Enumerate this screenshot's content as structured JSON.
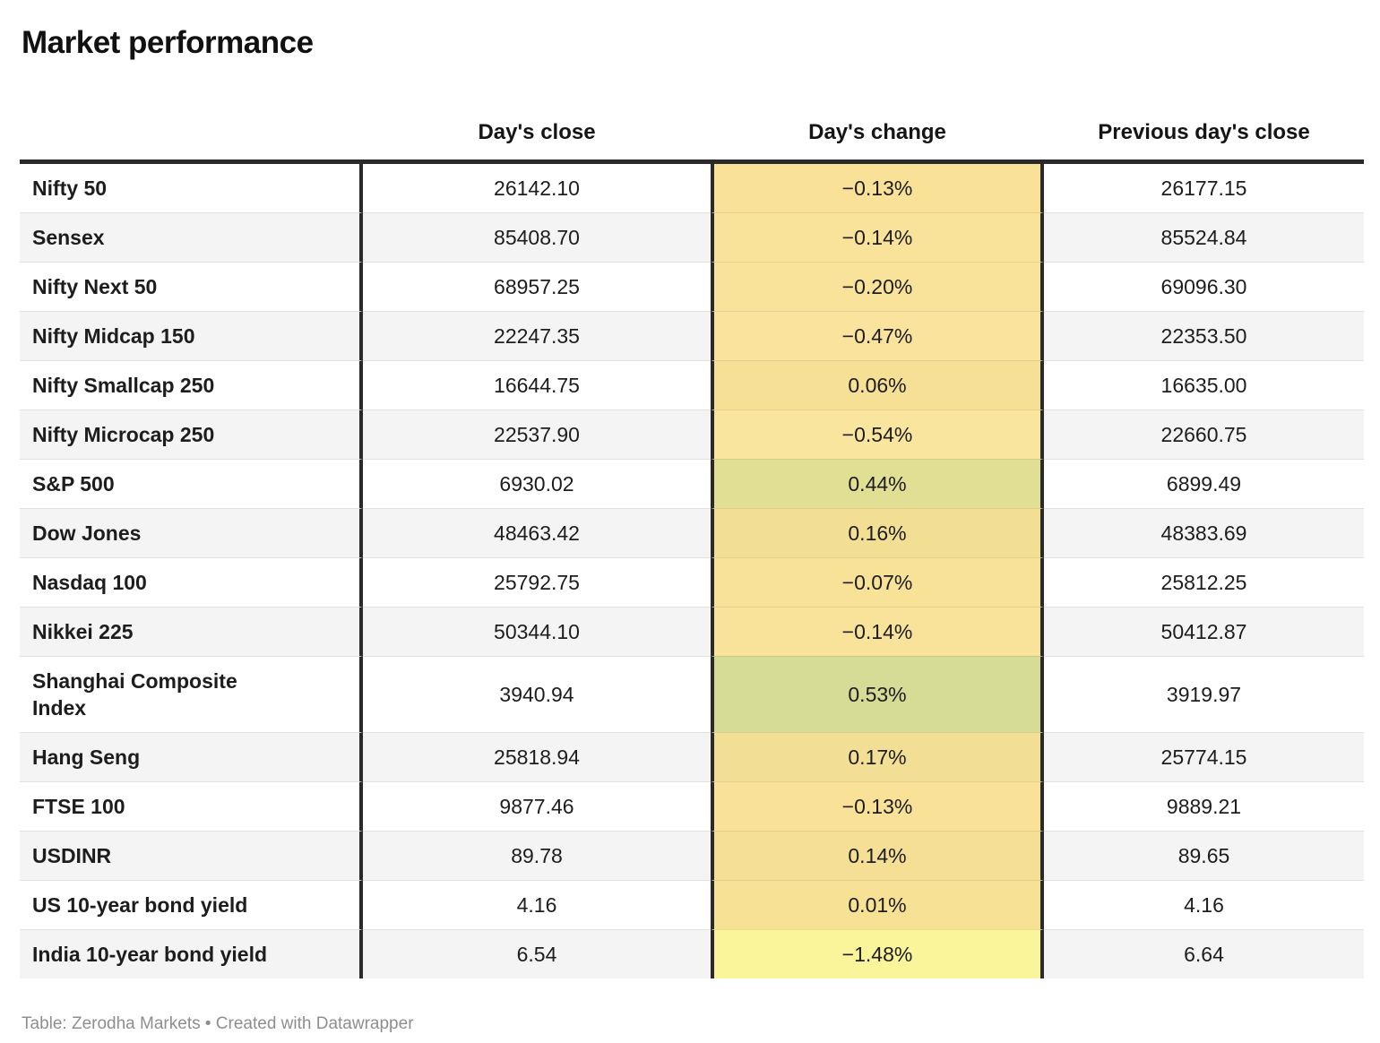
{
  "title": "Market performance",
  "table": {
    "columns": {
      "label": "",
      "close": "Day's close",
      "change": "Day's change",
      "prev": "Previous day's close"
    },
    "rows": [
      {
        "label": "Nifty 50",
        "close": "26142.10",
        "change": "−0.13%",
        "prev": "26177.15",
        "change_bg": "#F9E298"
      },
      {
        "label": "Sensex",
        "close": "85408.70",
        "change": "−0.14%",
        "prev": "85524.84",
        "change_bg": "#F9E299"
      },
      {
        "label": "Nifty Next 50",
        "close": "68957.25",
        "change": "−0.20%",
        "prev": "69096.30",
        "change_bg": "#F9E39A"
      },
      {
        "label": "Nifty Midcap 150",
        "close": "22247.35",
        "change": "−0.47%",
        "prev": "22353.50",
        "change_bg": "#FAE49D"
      },
      {
        "label": "Nifty Smallcap 250",
        "close": "16644.75",
        "change": "0.06%",
        "prev": "16635.00",
        "change_bg": "#F6E095"
      },
      {
        "label": "Nifty Microcap 250",
        "close": "22537.90",
        "change": "−0.54%",
        "prev": "22660.75",
        "change_bg": "#FAE59F"
      },
      {
        "label": "S&P 500",
        "close": "6930.02",
        "change": "0.44%",
        "prev": "6899.49",
        "change_bg": "#E1DF93"
      },
      {
        "label": "Dow Jones",
        "close": "48463.42",
        "change": "0.16%",
        "prev": "48383.69",
        "change_bg": "#F3DF94"
      },
      {
        "label": "Nasdaq 100",
        "close": "25792.75",
        "change": "−0.07%",
        "prev": "25812.25",
        "change_bg": "#F8E297"
      },
      {
        "label": "Nikkei 225",
        "close": "50344.10",
        "change": "−0.14%",
        "prev": "50412.87",
        "change_bg": "#F9E299"
      },
      {
        "label": "Shanghai Composite Index",
        "close": "3940.94",
        "change": "0.53%",
        "prev": "3919.97",
        "change_bg": "#D6DC95"
      },
      {
        "label": "Hang Seng",
        "close": "25818.94",
        "change": "0.17%",
        "prev": "25774.15",
        "change_bg": "#F2DF95"
      },
      {
        "label": "FTSE 100",
        "close": "9877.46",
        "change": "−0.13%",
        "prev": "9889.21",
        "change_bg": "#F9E298"
      },
      {
        "label": "USDINR",
        "close": "89.78",
        "change": "0.14%",
        "prev": "89.65",
        "change_bg": "#F4DF94"
      },
      {
        "label": "US 10-year bond yield",
        "close": "4.16",
        "change": "0.01%",
        "prev": "4.16",
        "change_bg": "#F7E195"
      },
      {
        "label": "India 10-year bond yield",
        "close": "6.54",
        "change": "−1.48%",
        "prev": "6.64",
        "change_bg": "#FAF49B"
      }
    ]
  },
  "footer": "Table: Zerodha Markets • Created with Datawrapper",
  "colors": {
    "border_dark": "#2a2a2a",
    "row_alt_bg": "#f4f4f4",
    "separator": "#e1e1e1",
    "footer_text": "#8e8e8e"
  },
  "chart_data": {
    "type": "table",
    "title": "Market performance",
    "categories": [
      "Nifty 50",
      "Sensex",
      "Nifty Next 50",
      "Nifty Midcap 150",
      "Nifty Smallcap 250",
      "Nifty Microcap 250",
      "S&P 500",
      "Dow Jones",
      "Nasdaq 100",
      "Nikkei 225",
      "Shanghai Composite Index",
      "Hang Seng",
      "FTSE 100",
      "USDINR",
      "US 10-year bond yield",
      "India 10-year bond yield"
    ],
    "series": [
      {
        "name": "Day's close",
        "values": [
          26142.1,
          85408.7,
          68957.25,
          22247.35,
          16644.75,
          22537.9,
          6930.02,
          48463.42,
          25792.75,
          50344.1,
          3940.94,
          25818.94,
          9877.46,
          89.78,
          4.16,
          6.54
        ]
      },
      {
        "name": "Day's change (%)",
        "values": [
          -0.13,
          -0.14,
          -0.2,
          -0.47,
          0.06,
          -0.54,
          0.44,
          0.16,
          -0.07,
          -0.14,
          0.53,
          0.17,
          -0.13,
          0.14,
          0.01,
          -1.48
        ]
      },
      {
        "name": "Previous day's close",
        "values": [
          26177.15,
          85524.84,
          69096.3,
          22353.5,
          16635.0,
          22660.75,
          6899.49,
          48383.69,
          25812.25,
          50412.87,
          3919.97,
          25774.15,
          9889.21,
          89.65,
          4.16,
          6.64
        ]
      }
    ],
    "layout_hints": {
      "heatmap_column": "Day's change (%)",
      "heatmap_palette": "pale yellow (most negative) → warm yellow (near zero) → olive green (most positive)",
      "column_alignment": {
        "labels": "left",
        "values": "center"
      },
      "alternating_rows": true
    }
  }
}
